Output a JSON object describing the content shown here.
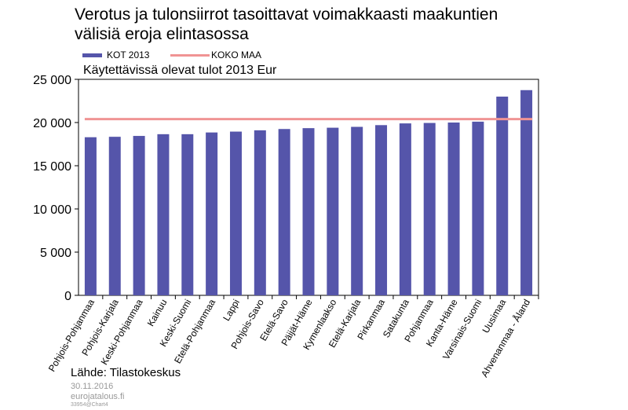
{
  "title": {
    "line1": "Verotus ja tulonsiirrot tasoittavat voimakkaasti maakuntien",
    "line2": "välisiä eroja elintasossa"
  },
  "subtitle": "Käytettävissä olevat tulot 2013 Eur",
  "footer": {
    "source": "Lähde: Tilastokeskus",
    "date": "30.11.2016",
    "site": "eurojatalous.fi",
    "code": "33954@Chart4"
  },
  "chart_data": {
    "type": "bar",
    "title": "Käytettävissä olevat tulot 2013 Eur",
    "categories": [
      "Pohjois-Pohjanmaa",
      "Pohjois-Karjala",
      "Keski-Pohjanmaa",
      "Kainuu",
      "Keski-Suomi",
      "Etelä-Pohjanmaa",
      "Lappi",
      "Pohjois-Savo",
      "Etelä-Savo",
      "Päijät-Häme",
      "Kymenlaakso",
      "Etelä-Karjala",
      "Pirkanmaa",
      "Satakunta",
      "Pohjanmaa",
      "Kanta-Häme",
      "Varsinais-Suomi",
      "Uusimaa",
      "Ahvenanmaa - Åland"
    ],
    "series": [
      {
        "name": "KOT 2013",
        "type": "bar",
        "color": "#5555aa",
        "values": [
          18300,
          18350,
          18450,
          18650,
          18650,
          18850,
          18950,
          19100,
          19250,
          19350,
          19400,
          19500,
          19700,
          19900,
          19950,
          20000,
          20100,
          23000,
          23750
        ]
      },
      {
        "name": "KOKO MAA",
        "type": "line",
        "color": "#f09494",
        "value": 20400
      }
    ],
    "ylim": [
      0,
      25000
    ],
    "yticks": [
      0,
      5000,
      10000,
      15000,
      20000,
      25000
    ],
    "ytick_labels": [
      "0",
      "5 000",
      "10 000",
      "15 000",
      "20 000",
      "25 000"
    ],
    "xlabel": "",
    "ylabel": "",
    "grid": false,
    "legend": "top-left"
  }
}
